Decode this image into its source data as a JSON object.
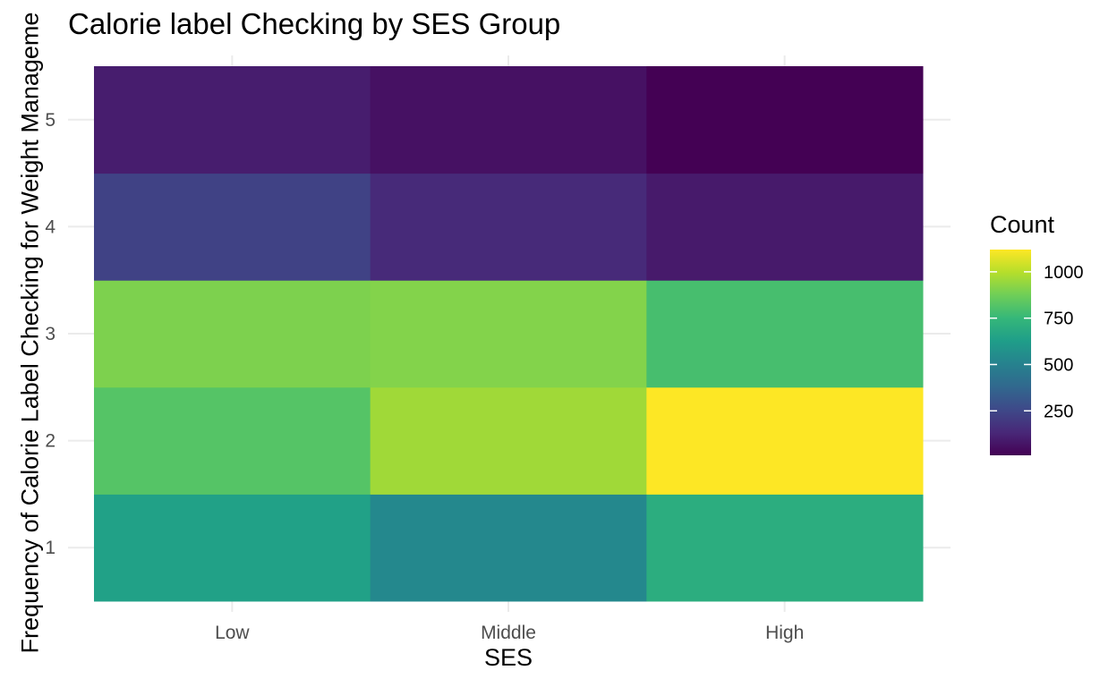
{
  "chart_data": {
    "type": "heatmap",
    "title": "Calorie label Checking by SES Group",
    "xlabel": "SES",
    "ylabel": "Frequency of Calorie Label Checking for Weight Manageme",
    "x_categories": [
      "Low",
      "Middle",
      "High"
    ],
    "y_categories": [
      "1",
      "2",
      "3",
      "4",
      "5"
    ],
    "cells": [
      {
        "x": "Low",
        "y": "1",
        "value": 640
      },
      {
        "x": "Low",
        "y": "2",
        "value": 820
      },
      {
        "x": "Low",
        "y": "3",
        "value": 900
      },
      {
        "x": "Low",
        "y": "4",
        "value": 230
      },
      {
        "x": "Low",
        "y": "5",
        "value": 100
      },
      {
        "x": "Middle",
        "y": "1",
        "value": 530
      },
      {
        "x": "Middle",
        "y": "2",
        "value": 960
      },
      {
        "x": "Middle",
        "y": "3",
        "value": 910
      },
      {
        "x": "Middle",
        "y": "4",
        "value": 140
      },
      {
        "x": "Middle",
        "y": "5",
        "value": 60
      },
      {
        "x": "High",
        "y": "1",
        "value": 700
      },
      {
        "x": "High",
        "y": "2",
        "value": 1120
      },
      {
        "x": "High",
        "y": "3",
        "value": 790
      },
      {
        "x": "High",
        "y": "4",
        "value": 90
      },
      {
        "x": "High",
        "y": "5",
        "value": 10
      }
    ],
    "legend": {
      "title": "Count",
      "ticks": [
        250,
        500,
        750,
        1000
      ],
      "range": [
        10,
        1120
      ],
      "colormap": "viridis",
      "placement": "right"
    },
    "grid": true,
    "colors": {
      "grid": "#ebebeb",
      "tick_text": "#4d4d4d",
      "viridis": [
        "#440154",
        "#482878",
        "#3e4989",
        "#31688e",
        "#26828e",
        "#1f9e89",
        "#35b779",
        "#6ece58",
        "#b5de2b",
        "#fde725"
      ]
    }
  }
}
